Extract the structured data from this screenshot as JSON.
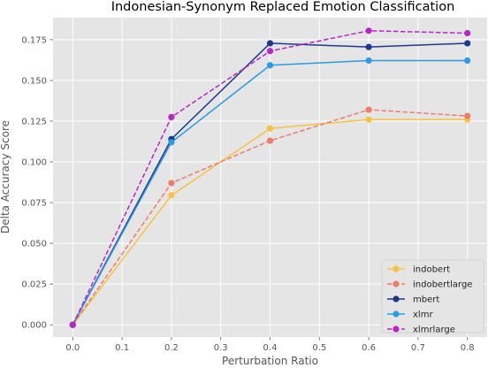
{
  "chart_data": {
    "type": "line",
    "title": "Indonesian-Synonym Replaced Emotion Classification",
    "xlabel": "Perturbation Ratio",
    "ylabel": "Delta Accuracy Score",
    "x": [
      0.0,
      0.2,
      0.4,
      0.6,
      0.8
    ],
    "xlim": [
      -0.04,
      0.84
    ],
    "ylim": [
      -0.0075,
      0.1885
    ],
    "xticks": [
      0.0,
      0.1,
      0.2,
      0.3,
      0.4,
      0.5,
      0.6,
      0.7,
      0.8
    ],
    "xtick_labels": [
      "0.0",
      "0.1",
      "0.2",
      "0.3",
      "0.4",
      "0.5",
      "0.6",
      "0.7",
      "0.8"
    ],
    "yticks": [
      0.0,
      0.025,
      0.05,
      0.075,
      0.1,
      0.125,
      0.15,
      0.175
    ],
    "ytick_labels": [
      "0.000",
      "0.025",
      "0.050",
      "0.075",
      "0.100",
      "0.125",
      "0.150",
      "0.175"
    ],
    "grid": true,
    "legend_position": "lower-right",
    "background": "#e5e5e5",
    "series": [
      {
        "name": "indobert",
        "color": "#f6c244",
        "dashed": false,
        "values": [
          0.0,
          0.0795,
          0.1205,
          0.126,
          0.126
        ]
      },
      {
        "name": "indobertlarge",
        "color": "#ef7b6a",
        "dashed": true,
        "values": [
          0.0,
          0.087,
          0.113,
          0.132,
          0.1282
        ]
      },
      {
        "name": "mbert",
        "color": "#1d3a8a",
        "dashed": false,
        "values": [
          0.0,
          0.114,
          0.1728,
          0.1705,
          0.1728
        ]
      },
      {
        "name": "xlmr",
        "color": "#2b9be6",
        "dashed": false,
        "values": [
          0.0,
          0.112,
          0.1593,
          0.1622,
          0.1622
        ]
      },
      {
        "name": "xlmrlarge",
        "color": "#b826c9",
        "dashed": true,
        "values": [
          0.0,
          0.1275,
          0.168,
          0.1805,
          0.179
        ]
      }
    ]
  }
}
